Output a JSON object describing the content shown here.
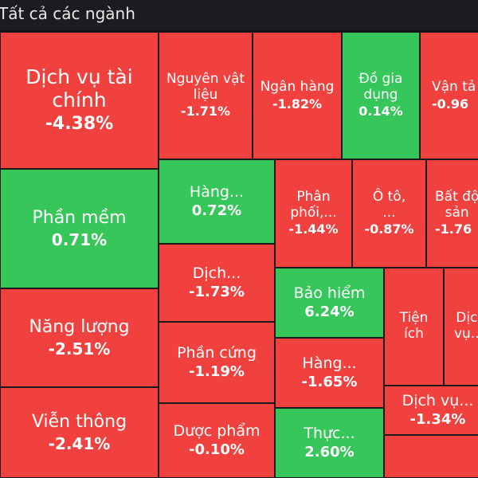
{
  "header": {
    "title": "Tất cả các ngành"
  },
  "colors": {
    "negative": "#f0413f",
    "positive": "#36c65a",
    "background": "#111214"
  },
  "tiles": {
    "dich_vu_tai_chinh": {
      "name": "Dịch vụ tài\nchính",
      "change": "-4.38%"
    },
    "nguyen_vat_lieu": {
      "name": "Nguyên vật\nliệu",
      "change": "-1.71%"
    },
    "ngan_hang": {
      "name": "Ngân hàng",
      "change": "-1.82%"
    },
    "do_gia_dung": {
      "name": "Đồ gia\ndụng",
      "change": "0.14%"
    },
    "van_tai": {
      "name": "Vận tả",
      "change": "-0.96"
    },
    "phan_mem": {
      "name": "Phần mềm",
      "change": "0.71%"
    },
    "hang_1": {
      "name": "Hàng...",
      "change": "0.72%"
    },
    "phan_phoi": {
      "name": "Phân\nphối,...",
      "change": "-1.44%"
    },
    "o_to": {
      "name": "Ô tô,\n...",
      "change": "-0.87%"
    },
    "bat_dong_san": {
      "name": "Bất độ\nsản",
      "change": "-1.76"
    },
    "dich_1": {
      "name": "Dịch...",
      "change": "-1.73%"
    },
    "bao_hiem": {
      "name": "Bảo hiểm",
      "change": "6.24%"
    },
    "tien_ich": {
      "name": "Tiện\ních",
      "change": ""
    },
    "dich_vu_2": {
      "name": "Dịc\nvụ..",
      "change": ""
    },
    "nang_luong": {
      "name": "Năng lượng",
      "change": "-2.51%"
    },
    "phan_cung": {
      "name": "Phần cứng",
      "change": "-1.19%"
    },
    "hang_2": {
      "name": "Hàng...",
      "change": "-1.65%"
    },
    "vien_thong": {
      "name": "Viễn thông",
      "change": "-2.41%"
    },
    "dich_vu_3": {
      "name": "Dịch vụ...",
      "change": "-1.34%"
    },
    "duoc_pham": {
      "name": "Dược phẩm",
      "change": "-0.10%"
    },
    "thuc": {
      "name": "Thực...",
      "change": "2.60%"
    },
    "small_bottom": {
      "name": "",
      "change": ""
    }
  }
}
